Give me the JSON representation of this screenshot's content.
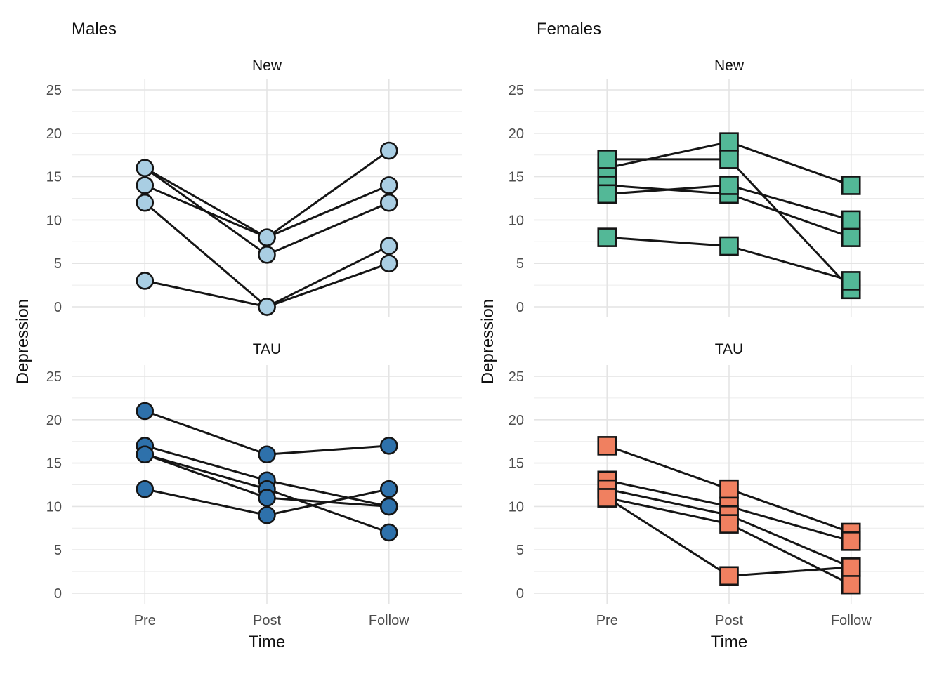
{
  "chart_data": {
    "type": "line",
    "x_categories": [
      "Pre",
      "Post",
      "Follow"
    ],
    "xlabel": "Time",
    "ylabel": "Depression",
    "ylim": [
      0,
      25
    ],
    "yticks": [
      0,
      5,
      10,
      15,
      20,
      25
    ],
    "y_minor_ticks": [
      2.5,
      7.5,
      12.5,
      17.5,
      22.5
    ],
    "grid": true,
    "legend": "none",
    "style": {
      "line_color": "#151515",
      "marker_stroke": "#151515",
      "grid_major_color": "#e4e4e4",
      "grid_minor_color": "#ececec",
      "tick_label_color": "#4d4d4d",
      "text_color": "#111111",
      "background": "#ffffff"
    },
    "columns": [
      {
        "title": "Males",
        "marker": "circle",
        "facets": [
          {
            "label": "New",
            "marker_fill": "#a9cee3",
            "series": [
              [
                16,
                8,
                18
              ],
              [
                14,
                8,
                14
              ],
              [
                16,
                6,
                12
              ],
              [
                12,
                0,
                7
              ],
              [
                3,
                0,
                5
              ]
            ]
          },
          {
            "label": "TAU",
            "marker_fill": "#2e71ab",
            "series": [
              [
                21,
                16,
                17
              ],
              [
                17,
                13,
                10
              ],
              [
                16,
                12,
                7
              ],
              [
                16,
                11,
                10
              ],
              [
                12,
                9,
                12
              ]
            ]
          }
        ]
      },
      {
        "title": "Females",
        "marker": "square",
        "facets": [
          {
            "label": "New",
            "marker_fill": "#53b897",
            "series": [
              [
                16,
                19,
                14
              ],
              [
                17,
                17,
                2
              ],
              [
                14,
                13,
                8
              ],
              [
                13,
                14,
                10
              ],
              [
                8,
                7,
                3
              ]
            ]
          },
          {
            "label": "TAU",
            "marker_fill": "#f08060",
            "series": [
              [
                17,
                12,
                7
              ],
              [
                13,
                10,
                6
              ],
              [
                12,
                9,
                3
              ],
              [
                11,
                8,
                1
              ],
              [
                11,
                2,
                3
              ]
            ]
          }
        ]
      }
    ]
  }
}
